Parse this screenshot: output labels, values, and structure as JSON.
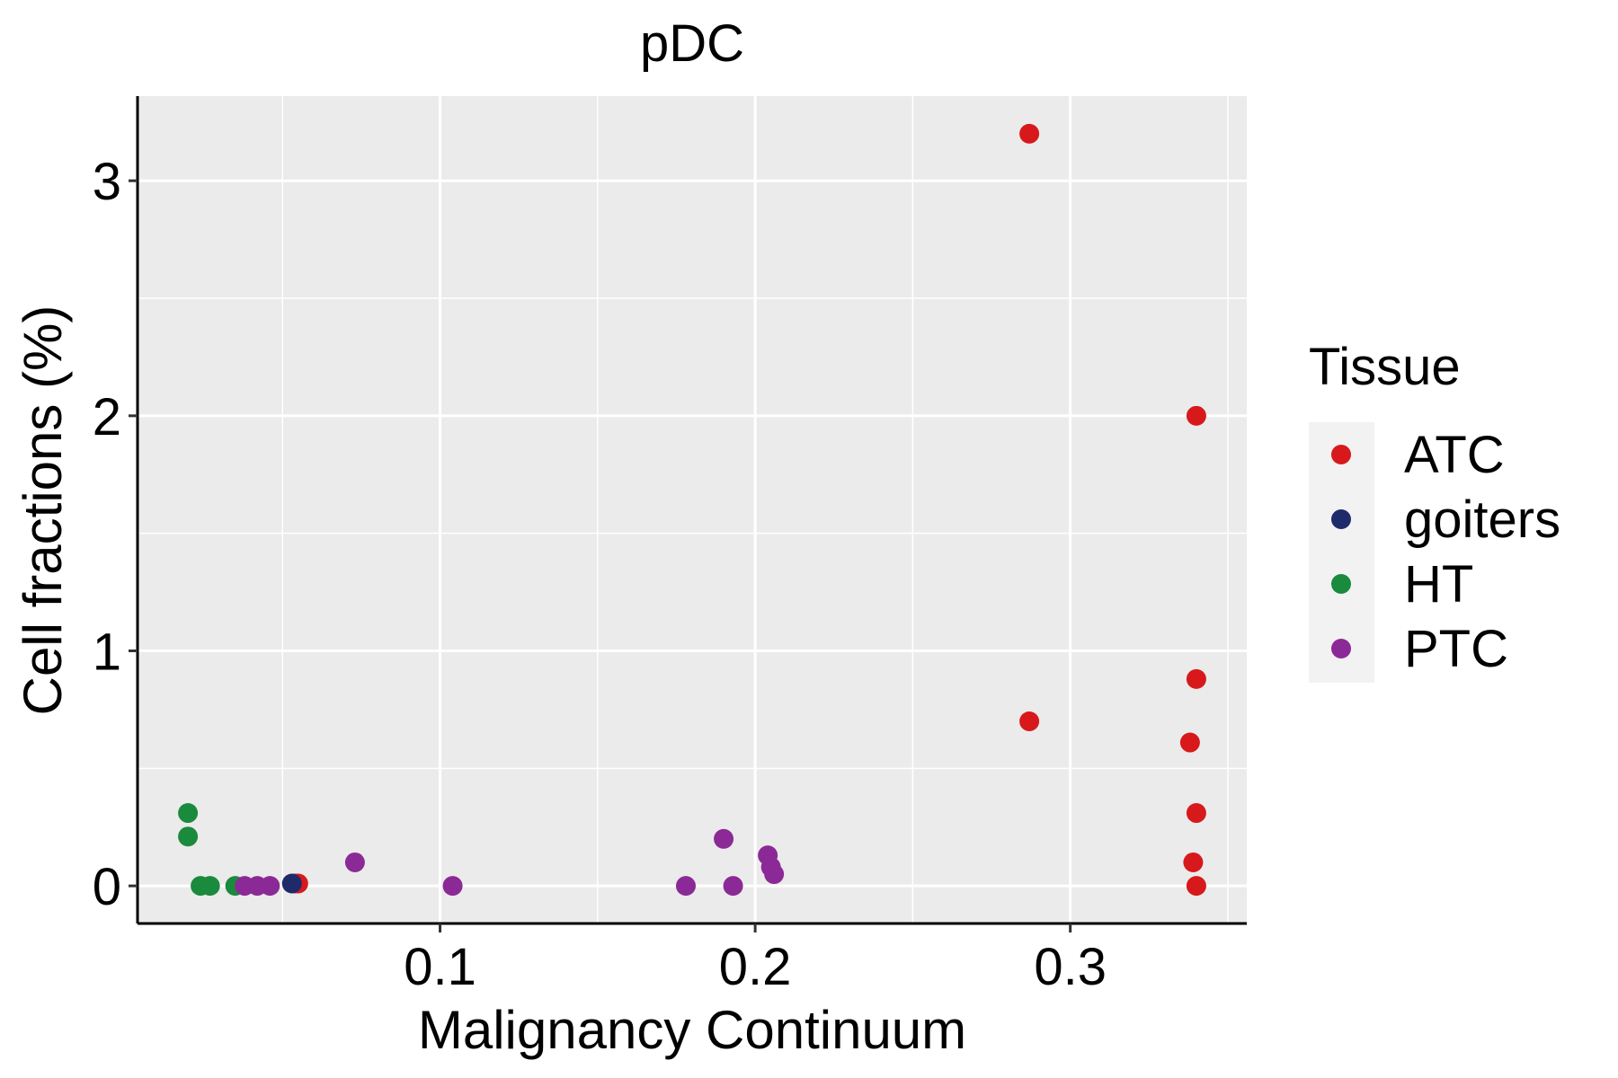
{
  "chart_data": {
    "type": "scatter",
    "title": "pDC",
    "xlabel": "Malignancy Continuum",
    "ylabel": "Cell fractions (%)",
    "xlim": [
      0.004,
      0.356
    ],
    "ylim": [
      -0.16,
      3.36
    ],
    "x_ticks": [
      0.1,
      0.2,
      0.3
    ],
    "x_tick_labels": [
      "0.1",
      "0.2",
      "0.3"
    ],
    "y_ticks": [
      0,
      1,
      2,
      3
    ],
    "y_tick_labels": [
      "0",
      "1",
      "2",
      "3"
    ],
    "grid": true,
    "legend": {
      "title": "Tissue",
      "position": "right"
    },
    "series": [
      {
        "name": "ATC",
        "color": "#d7191c",
        "points": [
          {
            "x": 0.287,
            "y": 3.2
          },
          {
            "x": 0.34,
            "y": 2.0
          },
          {
            "x": 0.34,
            "y": 0.88
          },
          {
            "x": 0.287,
            "y": 0.7
          },
          {
            "x": 0.338,
            "y": 0.61
          },
          {
            "x": 0.34,
            "y": 0.31
          },
          {
            "x": 0.339,
            "y": 0.1
          },
          {
            "x": 0.34,
            "y": 0.0
          },
          {
            "x": 0.054,
            "y": 0.01
          },
          {
            "x": 0.055,
            "y": 0.01
          }
        ]
      },
      {
        "name": "goiters",
        "color": "#1f2a6b",
        "points": [
          {
            "x": 0.053,
            "y": 0.01
          }
        ]
      },
      {
        "name": "HT",
        "color": "#1a8a3c",
        "points": [
          {
            "x": 0.02,
            "y": 0.31
          },
          {
            "x": 0.02,
            "y": 0.21
          },
          {
            "x": 0.024,
            "y": 0.0
          },
          {
            "x": 0.027,
            "y": 0.0
          },
          {
            "x": 0.035,
            "y": 0.0
          }
        ]
      },
      {
        "name": "PTC",
        "color": "#8b2a96",
        "points": [
          {
            "x": 0.073,
            "y": 0.1
          },
          {
            "x": 0.104,
            "y": 0.0
          },
          {
            "x": 0.038,
            "y": 0.0
          },
          {
            "x": 0.042,
            "y": 0.0
          },
          {
            "x": 0.046,
            "y": 0.0
          },
          {
            "x": 0.178,
            "y": 0.0
          },
          {
            "x": 0.19,
            "y": 0.2
          },
          {
            "x": 0.193,
            "y": 0.0
          },
          {
            "x": 0.204,
            "y": 0.13
          },
          {
            "x": 0.205,
            "y": 0.08
          },
          {
            "x": 0.206,
            "y": 0.05
          }
        ]
      }
    ]
  }
}
